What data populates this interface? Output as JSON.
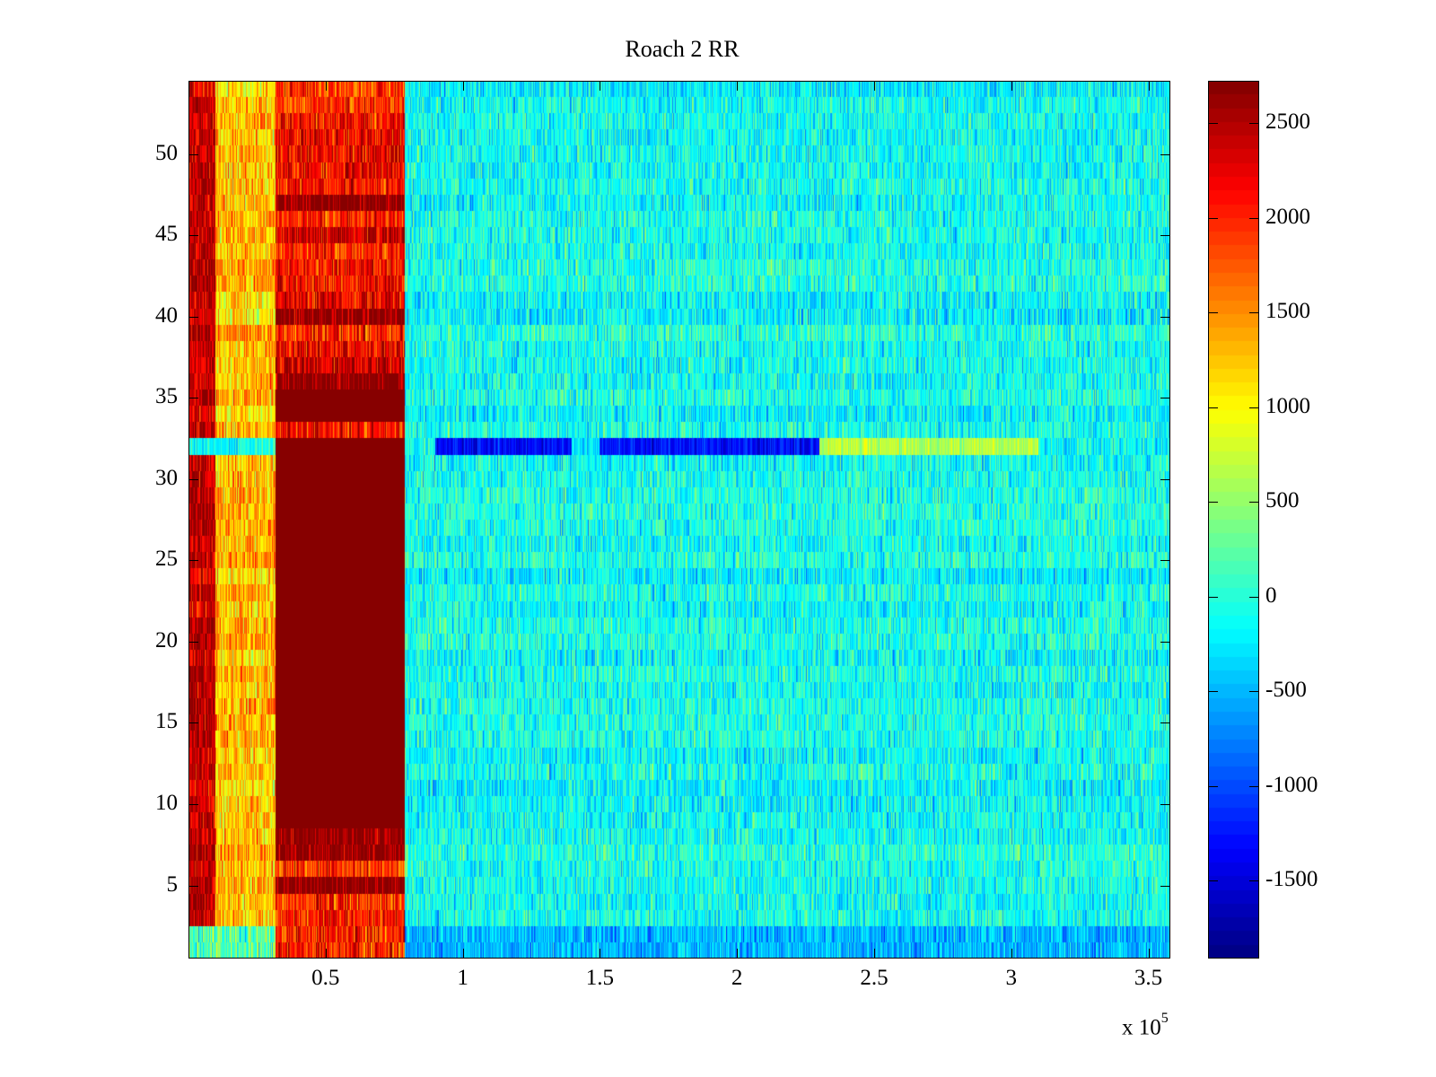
{
  "chart_data": {
    "type": "heatmap",
    "title": "Roach 2 RR",
    "xlabel": "",
    "ylabel": "",
    "x_multiplier": "x 10",
    "x_multiplier_exponent": "5",
    "xlim": [
      0,
      358000
    ],
    "ylim": [
      0.5,
      54.5
    ],
    "rows": 54,
    "xticks": [
      50000,
      100000,
      150000,
      200000,
      250000,
      300000,
      350000
    ],
    "xtick_labels": [
      "0.5",
      "1",
      "1.5",
      "2",
      "2.5",
      "3",
      "3.5"
    ],
    "yticks": [
      5,
      10,
      15,
      20,
      25,
      30,
      35,
      40,
      45,
      50
    ],
    "ytick_labels": [
      "5",
      "10",
      "15",
      "20",
      "25",
      "30",
      "35",
      "40",
      "45",
      "50"
    ],
    "colormap": "jet",
    "clim": [
      -1912,
      2723
    ],
    "colorbar_ticks": [
      2500,
      2000,
      1500,
      1000,
      500,
      0,
      -500,
      -1000,
      -1500
    ],
    "colorbar_tick_labels": [
      "2500",
      "2000",
      "1500",
      "1000",
      "500",
      "0",
      "-500",
      "-1000",
      "-1500"
    ],
    "colorbar_location": "right",
    "regions": [
      {
        "x_range": [
          0,
          10000
        ],
        "rows": "all",
        "approx_value": 2300
      },
      {
        "x_range": [
          10000,
          32000
        ],
        "rows": "all",
        "approx_value": 1200
      },
      {
        "x_range": [
          32000,
          79000
        ],
        "rows": "9-35",
        "approx_value": 2700
      },
      {
        "x_range": [
          32000,
          79000
        ],
        "rows": "1-8, 36-54",
        "approx_value": 2200
      },
      {
        "x_range": [
          79000,
          358000
        ],
        "rows": "all",
        "approx_value": -150
      },
      {
        "x_range": [
          0,
          32000
        ],
        "rows": "32",
        "approx_value": -100
      },
      {
        "x_range": [
          90000,
          230000
        ],
        "rows": "32",
        "approx_value": -1300
      },
      {
        "x_range": [
          230000,
          310000
        ],
        "rows": "32",
        "approx_value": 700
      },
      {
        "x_range": [
          0,
          32000
        ],
        "rows": "1-2",
        "approx_value": 100
      },
      {
        "x_range": [
          79000,
          358000
        ],
        "rows": "1-2",
        "approx_value": -500
      }
    ]
  }
}
